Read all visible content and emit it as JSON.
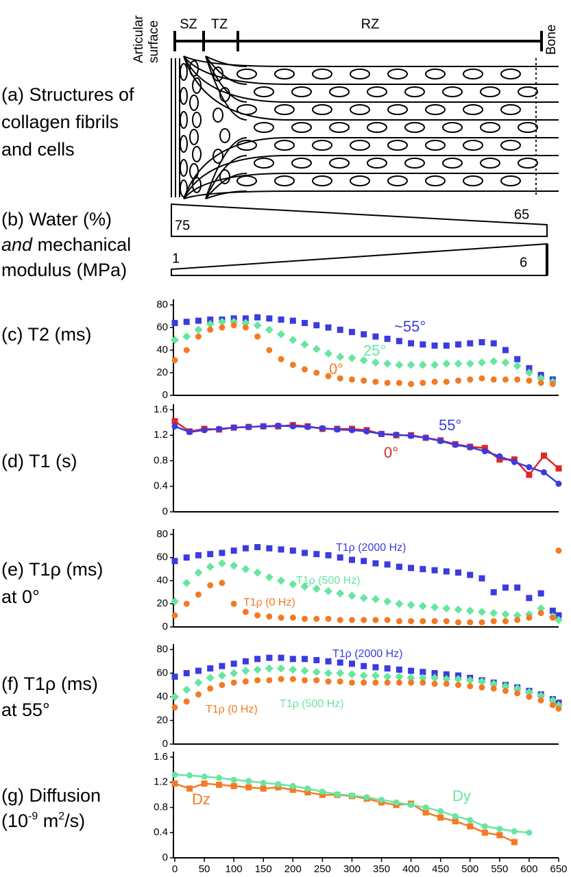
{
  "diagram": {
    "articular": [
      "Articular",
      "surface"
    ],
    "bone": "Bone",
    "zones": [
      "SZ",
      "TZ",
      "RZ"
    ],
    "panel_a": [
      "(a) Structures of",
      "collagen fibrils",
      "and cells"
    ],
    "panel_b": [
      [
        {
          "text": "(b) Water (%)"
        }
      ],
      [
        {
          "text": "and",
          "italic": true
        },
        {
          "text": " mechanical"
        }
      ],
      [
        {
          "text": "modulus (MPa)"
        }
      ]
    ],
    "water": {
      "start": 75,
      "end": 65
    },
    "modulus": {
      "start": 1,
      "end": 6
    }
  },
  "chart_data": [
    {
      "type": "scatter",
      "label": [
        [
          {
            "text": "(c) T2 (ms)"
          }
        ]
      ],
      "xlim": [
        0,
        650
      ],
      "ylim": [
        0,
        80
      ],
      "yticks": [
        0,
        20,
        40,
        60,
        80
      ],
      "x": [
        0,
        20,
        40,
        60,
        80,
        100,
        120,
        140,
        160,
        180,
        200,
        220,
        240,
        260,
        280,
        300,
        320,
        340,
        360,
        380,
        400,
        420,
        440,
        460,
        480,
        500,
        520,
        540,
        560,
        580,
        600,
        620,
        640
      ],
      "series": [
        {
          "name": "~55°",
          "color": "#3b3be0",
          "marker": "square",
          "values": [
            64,
            65,
            66,
            67,
            67,
            68,
            68,
            69,
            68,
            67,
            66,
            64,
            62,
            60,
            58,
            56,
            54,
            52,
            50,
            48,
            46,
            45,
            44,
            44,
            45,
            46,
            47,
            46,
            40,
            32,
            24,
            18,
            14
          ]
        },
        {
          "name": "25°",
          "color": "#66e6a0",
          "marker": "diamond",
          "values": [
            49,
            52,
            58,
            63,
            65,
            65,
            64,
            62,
            58,
            54,
            49,
            45,
            41,
            37,
            34,
            33,
            31,
            29,
            28,
            27,
            27,
            27,
            27,
            28,
            28,
            28,
            29,
            30,
            29,
            26,
            20,
            15,
            12
          ]
        },
        {
          "name": "0°",
          "color": "#f37a24",
          "marker": "circle",
          "values": [
            31,
            40,
            52,
            58,
            60,
            62,
            60,
            52,
            40,
            32,
            27,
            23,
            20,
            17,
            15,
            14,
            13,
            12,
            11,
            11,
            10,
            11,
            12,
            12,
            13,
            14,
            15,
            14,
            14,
            14,
            13,
            11,
            10
          ]
        }
      ]
    },
    {
      "type": "line",
      "label": [
        [
          {
            "text": "(d) T1 (s)"
          }
        ]
      ],
      "xlim": [
        0,
        650
      ],
      "ylim": [
        0,
        1.6
      ],
      "yticks": [
        0,
        0.4,
        0.8,
        1.2,
        1.6
      ],
      "x": [
        0,
        25,
        50,
        75,
        100,
        125,
        150,
        175,
        200,
        225,
        250,
        275,
        300,
        325,
        350,
        375,
        400,
        425,
        450,
        475,
        500,
        525,
        550,
        575,
        600,
        625,
        650
      ],
      "series": [
        {
          "name": "0°",
          "color": "#e02626",
          "marker": "square",
          "values": [
            1.42,
            1.26,
            1.3,
            1.29,
            1.32,
            1.33,
            1.34,
            1.34,
            1.36,
            1.34,
            1.3,
            1.3,
            1.3,
            1.28,
            1.22,
            1.2,
            1.2,
            1.16,
            1.12,
            1.06,
            1.02,
            1.0,
            0.82,
            0.82,
            0.58,
            0.88,
            0.68
          ]
        },
        {
          "name": "55°",
          "color": "#3b3be0",
          "marker": "circle",
          "values": [
            1.34,
            1.25,
            1.28,
            1.3,
            1.32,
            1.33,
            1.34,
            1.35,
            1.34,
            1.33,
            1.31,
            1.29,
            1.28,
            1.26,
            1.22,
            1.21,
            1.19,
            1.16,
            1.11,
            1.05,
            1.01,
            0.95,
            0.87,
            0.78,
            0.7,
            0.62,
            0.44
          ]
        }
      ]
    },
    {
      "type": "scatter",
      "label": [
        [
          {
            "text": "(e) T1ρ (ms)"
          }
        ],
        [
          {
            "text": "at 0°"
          }
        ]
      ],
      "xlim": [
        0,
        650
      ],
      "ylim": [
        0,
        80
      ],
      "yticks": [
        0,
        20,
        40,
        60,
        80
      ],
      "x": [
        0,
        20,
        40,
        60,
        80,
        100,
        120,
        140,
        160,
        180,
        200,
        220,
        240,
        260,
        280,
        300,
        320,
        340,
        360,
        380,
        400,
        420,
        440,
        460,
        480,
        500,
        520,
        540,
        560,
        580,
        600,
        620,
        640,
        650
      ],
      "series": [
        {
          "name": "T1ρ (2000 Hz)",
          "color": "#3b3be0",
          "marker": "square",
          "values": [
            57,
            60,
            62,
            63,
            64,
            66,
            68,
            69,
            68,
            67,
            66,
            64,
            63,
            62,
            60,
            58,
            57,
            55,
            54,
            52,
            51,
            50,
            49,
            48,
            47,
            45,
            42,
            30,
            34,
            34,
            25,
            29,
            14,
            10
          ]
        },
        {
          "name": "T1ρ (500 Hz)",
          "color": "#66e6a0",
          "marker": "diamond",
          "values": [
            22,
            38,
            47,
            52,
            55,
            53,
            50,
            47,
            43,
            40,
            37,
            35,
            33,
            31,
            29,
            27,
            25,
            24,
            22,
            20,
            19,
            18,
            17,
            16,
            15,
            14,
            13,
            12,
            11,
            10,
            11,
            16,
            9,
            6
          ]
        },
        {
          "name": "T1ρ (0 Hz)",
          "color": "#f37a24",
          "marker": "circle",
          "values": [
            10,
            20,
            28,
            36,
            38,
            20,
            13,
            10,
            9,
            8,
            8,
            7,
            7,
            7,
            6,
            6,
            6,
            6,
            6,
            5,
            5,
            5,
            5,
            5,
            4,
            4,
            4,
            5,
            5,
            6,
            8,
            12,
            8,
            66
          ]
        }
      ]
    },
    {
      "type": "scatter",
      "label": [
        [
          {
            "text": "(f) T1ρ (ms)"
          }
        ],
        [
          {
            "text": "at 55°"
          }
        ]
      ],
      "xlim": [
        0,
        650
      ],
      "ylim": [
        0,
        80
      ],
      "yticks": [
        0,
        20,
        40,
        60,
        80
      ],
      "x": [
        0,
        20,
        40,
        60,
        80,
        100,
        120,
        140,
        160,
        180,
        200,
        220,
        240,
        260,
        280,
        300,
        320,
        340,
        360,
        380,
        400,
        420,
        440,
        460,
        480,
        500,
        520,
        540,
        560,
        580,
        600,
        620,
        640,
        650
      ],
      "series": [
        {
          "name": "T1ρ (2000 Hz)",
          "color": "#3b3be0",
          "marker": "square",
          "values": [
            57,
            60,
            62,
            64,
            66,
            68,
            70,
            72,
            73,
            73,
            72,
            72,
            71,
            70,
            69,
            68,
            66,
            65,
            64,
            63,
            62,
            61,
            60,
            59,
            58,
            56,
            54,
            52,
            50,
            48,
            45,
            42,
            38,
            35
          ]
        },
        {
          "name": "T1ρ (500 Hz)",
          "color": "#66e6a0",
          "marker": "diamond",
          "values": [
            40,
            46,
            52,
            56,
            58,
            60,
            62,
            63,
            64,
            64,
            63,
            62,
            61,
            60,
            60,
            59,
            58,
            58,
            57,
            57,
            56,
            56,
            56,
            55,
            55,
            54,
            53,
            51,
            49,
            47,
            44,
            41,
            37,
            33
          ]
        },
        {
          "name": "T1ρ (0 Hz)",
          "color": "#f37a24",
          "marker": "circle",
          "values": [
            31,
            36,
            42,
            47,
            50,
            52,
            53,
            54,
            54,
            55,
            55,
            54,
            54,
            53,
            53,
            52,
            52,
            52,
            52,
            52,
            52,
            52,
            51,
            51,
            50,
            49,
            48,
            47,
            45,
            43,
            40,
            37,
            33,
            30
          ]
        }
      ]
    },
    {
      "type": "line",
      "label": [
        [
          {
            "text": "(g) Diffusion"
          }
        ],
        [
          {
            "text": "(10"
          },
          {
            "text": "-9",
            "sup": true
          },
          {
            "text": " m"
          },
          {
            "text": "2",
            "sup": true
          },
          {
            "text": "/s)"
          }
        ]
      ],
      "xlim": [
        0,
        650
      ],
      "ylim": [
        0,
        1.6
      ],
      "yticks": [
        0,
        0.4,
        0.8,
        1.2,
        1.6
      ],
      "xticks": [
        0,
        50,
        100,
        150,
        200,
        250,
        300,
        350,
        400,
        450,
        500,
        550,
        600,
        650
      ],
      "series": [
        {
          "name": "Dz",
          "color": "#f37a24",
          "marker": "square",
          "x": [
            0,
            25,
            50,
            75,
            100,
            125,
            150,
            175,
            200,
            225,
            250,
            275,
            300,
            325,
            350,
            375,
            400,
            425,
            450,
            475,
            500,
            525,
            550,
            575
          ],
          "values": [
            1.18,
            1.1,
            1.18,
            1.16,
            1.14,
            1.12,
            1.1,
            1.12,
            1.08,
            1.04,
            1.0,
            1.0,
            0.98,
            0.94,
            0.88,
            0.84,
            0.86,
            0.72,
            0.64,
            0.58,
            0.5,
            0.4,
            0.36,
            0.25
          ]
        },
        {
          "name": "Dy",
          "color": "#66e6a0",
          "marker": "circle",
          "x": [
            0,
            25,
            50,
            75,
            100,
            125,
            150,
            175,
            200,
            225,
            250,
            275,
            300,
            325,
            350,
            375,
            400,
            425,
            450,
            475,
            500,
            525,
            550,
            575,
            600
          ],
          "values": [
            1.32,
            1.31,
            1.29,
            1.27,
            1.24,
            1.22,
            1.19,
            1.17,
            1.14,
            1.1,
            1.05,
            1.01,
            0.99,
            0.96,
            0.92,
            0.88,
            0.84,
            0.8,
            0.74,
            0.66,
            0.6,
            0.5,
            0.46,
            0.42,
            0.4
          ]
        }
      ]
    }
  ]
}
